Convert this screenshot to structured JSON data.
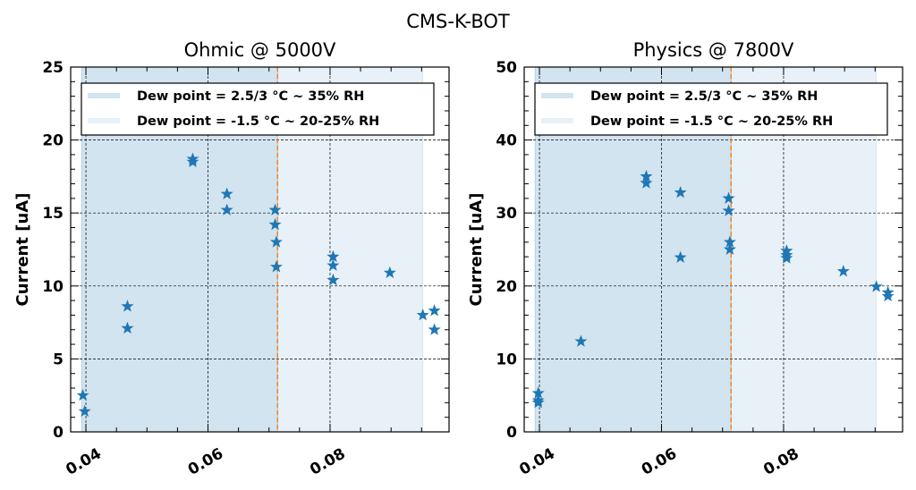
{
  "suptitle": "CMS-K-BOT",
  "chart_data": [
    {
      "type": "scatter",
      "title": "Ohmic @ 5000V",
      "xlabel": "",
      "ylabel": "Current [uA]",
      "xlim": [
        0.0375,
        0.0995
      ],
      "ylim": [
        0,
        25
      ],
      "xticks": [
        "0.04",
        "0.06",
        "0.08"
      ],
      "xtick_values": [
        0.04,
        0.06,
        0.08
      ],
      "yticks": [
        "0",
        "5",
        "10",
        "15",
        "20",
        "25"
      ],
      "ytick_values": [
        0,
        5,
        10,
        15,
        20,
        25
      ],
      "grid": true,
      "marker": "star",
      "color": "#1f77b4",
      "legend_position": "top",
      "shaded_regions": [
        {
          "label": "Dew point = 2.5/3 °C ~ 35% RH",
          "x_start": 0.0393,
          "x_end": 0.0714,
          "color": "#1f77b4",
          "opacity": 0.2
        },
        {
          "label": "Dew point = -1.5 °C ~ 20-25% RH",
          "x_start": 0.0714,
          "x_end": 0.0952,
          "color": "#1f77b4",
          "opacity": 0.1
        }
      ],
      "vline": {
        "x": 0.0714,
        "color": "#ff7f0e"
      },
      "points": [
        {
          "x": 0.0395,
          "y": 2.5
        },
        {
          "x": 0.0398,
          "y": 1.4
        },
        {
          "x": 0.0468,
          "y": 8.6
        },
        {
          "x": 0.0468,
          "y": 7.1
        },
        {
          "x": 0.0575,
          "y": 18.7
        },
        {
          "x": 0.0575,
          "y": 18.5
        },
        {
          "x": 0.0631,
          "y": 16.3
        },
        {
          "x": 0.0631,
          "y": 15.2
        },
        {
          "x": 0.071,
          "y": 15.2
        },
        {
          "x": 0.071,
          "y": 14.2
        },
        {
          "x": 0.0712,
          "y": 13.0
        },
        {
          "x": 0.0712,
          "y": 11.3
        },
        {
          "x": 0.0805,
          "y": 12.0
        },
        {
          "x": 0.0805,
          "y": 11.4
        },
        {
          "x": 0.0805,
          "y": 10.4
        },
        {
          "x": 0.0898,
          "y": 10.9
        },
        {
          "x": 0.0952,
          "y": 8.0
        },
        {
          "x": 0.0971,
          "y": 8.3
        },
        {
          "x": 0.0971,
          "y": 7.0
        }
      ]
    },
    {
      "type": "scatter",
      "title": "Physics @ 7800V",
      "xlabel": "",
      "ylabel": "Current [uA]",
      "xlim": [
        0.0375,
        0.0995
      ],
      "ylim": [
        0,
        50
      ],
      "xticks": [
        "0.04",
        "0.06",
        "0.08"
      ],
      "xtick_values": [
        0.04,
        0.06,
        0.08
      ],
      "yticks": [
        "0",
        "10",
        "20",
        "30",
        "40",
        "50"
      ],
      "ytick_values": [
        0,
        10,
        20,
        30,
        40,
        50
      ],
      "grid": true,
      "marker": "star",
      "color": "#1f77b4",
      "legend_position": "top",
      "shaded_regions": [
        {
          "label": "Dew point = 2.5/3 °C ~ 35% RH",
          "x_start": 0.0393,
          "x_end": 0.0714,
          "color": "#1f77b4",
          "opacity": 0.2
        },
        {
          "label": "Dew point = -1.5 °C ~ 20-25% RH",
          "x_start": 0.0714,
          "x_end": 0.0952,
          "color": "#1f77b4",
          "opacity": 0.1
        }
      ],
      "vline": {
        "x": 0.0714,
        "color": "#ff7f0e"
      },
      "points": [
        {
          "x": 0.0398,
          "y": 5.3
        },
        {
          "x": 0.0398,
          "y": 4.3
        },
        {
          "x": 0.0398,
          "y": 4.0
        },
        {
          "x": 0.0468,
          "y": 12.4
        },
        {
          "x": 0.0575,
          "y": 35.0
        },
        {
          "x": 0.0575,
          "y": 34.1
        },
        {
          "x": 0.0631,
          "y": 32.8
        },
        {
          "x": 0.0631,
          "y": 23.9
        },
        {
          "x": 0.071,
          "y": 32.0
        },
        {
          "x": 0.071,
          "y": 30.3
        },
        {
          "x": 0.0712,
          "y": 26.0
        },
        {
          "x": 0.0712,
          "y": 25.0
        },
        {
          "x": 0.0805,
          "y": 24.8
        },
        {
          "x": 0.0805,
          "y": 24.2
        },
        {
          "x": 0.0805,
          "y": 23.8
        },
        {
          "x": 0.0898,
          "y": 22.0
        },
        {
          "x": 0.0952,
          "y": 19.9
        },
        {
          "x": 0.0971,
          "y": 19.1
        },
        {
          "x": 0.0971,
          "y": 18.6
        }
      ]
    }
  ]
}
